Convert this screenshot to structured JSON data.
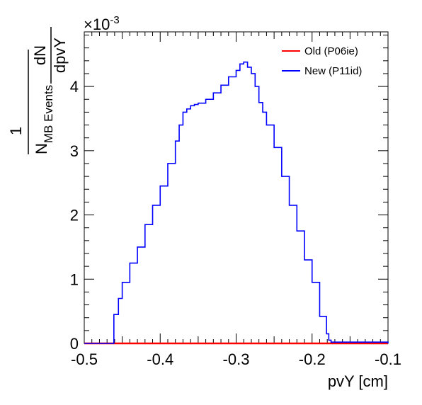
{
  "chart_data": {
    "type": "line",
    "xlabel": "pvY [cm]",
    "ylabel": {
      "numerator": "1",
      "denominator_main": "N",
      "denominator_sub": "MB Events",
      "frac_numerator": "dN",
      "frac_denominator": "dpvY"
    },
    "y_multiplier_base": "×10",
    "y_multiplier_exp": "-3",
    "xlim": [
      -0.5,
      -0.1
    ],
    "ylim": [
      0,
      4.85
    ],
    "x_ticks": [
      "-0.5",
      "-0.4",
      "-0.3",
      "-0.2",
      "-0.1"
    ],
    "x_tick_values": [
      -0.5,
      -0.4,
      -0.3,
      -0.2,
      -0.1
    ],
    "y_ticks": [
      "0",
      "1",
      "2",
      "3",
      "4"
    ],
    "y_tick_values": [
      0,
      1,
      2,
      3,
      4
    ],
    "grid": false,
    "legend_position": "top-right",
    "series": [
      {
        "name": "Old (P06ie)",
        "color": "#ff0000",
        "x": [
          -0.5,
          -0.1
        ],
        "y": [
          0,
          0
        ]
      },
      {
        "name": "New (P11id)",
        "color": "#0000ff",
        "x": [
          -0.5,
          -0.462,
          -0.461,
          -0.455,
          -0.45,
          -0.44,
          -0.43,
          -0.42,
          -0.41,
          -0.4,
          -0.39,
          -0.38,
          -0.375,
          -0.37,
          -0.365,
          -0.36,
          -0.355,
          -0.35,
          -0.34,
          -0.33,
          -0.32,
          -0.31,
          -0.3,
          -0.295,
          -0.29,
          -0.285,
          -0.28,
          -0.275,
          -0.27,
          -0.265,
          -0.26,
          -0.25,
          -0.24,
          -0.23,
          -0.22,
          -0.21,
          -0.2,
          -0.19,
          -0.182,
          -0.181,
          -0.178,
          -0.175,
          -0.1
        ],
        "y": [
          0,
          0,
          0.45,
          0.7,
          0.95,
          1.25,
          1.5,
          1.85,
          2.15,
          2.45,
          2.8,
          3.15,
          3.4,
          3.6,
          3.65,
          3.7,
          3.72,
          3.74,
          3.8,
          3.9,
          4.02,
          4.15,
          4.25,
          4.35,
          4.38,
          4.3,
          4.2,
          4.0,
          3.75,
          3.6,
          3.4,
          3.05,
          2.6,
          2.15,
          1.75,
          1.3,
          0.95,
          0.42,
          0.42,
          0.15,
          0.05,
          0.02,
          0.0
        ]
      }
    ]
  }
}
